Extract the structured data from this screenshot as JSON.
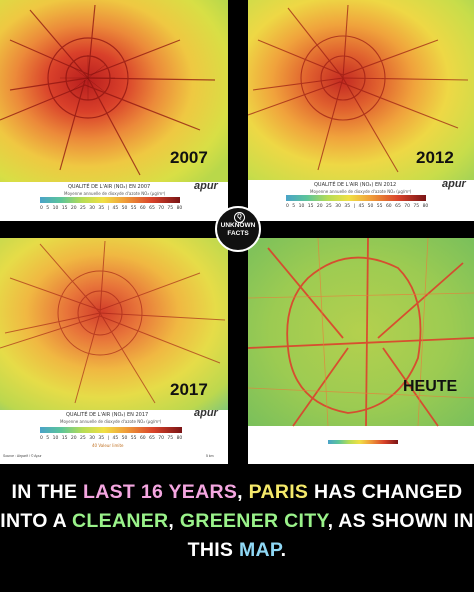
{
  "panels": [
    {
      "year": "2007",
      "legend_title": "QUALITÉ DE L'AIR (NO₂) EN 2007",
      "legend_sub": "Moyenne annuelle de dioxyde d'azote NO₂ (µg/m³)",
      "logo": "apur"
    },
    {
      "year": "2012",
      "legend_title": "QUALITÉ DE L'AIR (NO₂) EN 2012",
      "legend_sub": "Moyenne annuelle de dioxyde d'azote NO₂ (µg/m³)",
      "logo": "apur"
    },
    {
      "year": "2017",
      "legend_title": "QUALITÉ DE L'AIR (NO₂) EN 2017",
      "legend_sub": "Moyenne annuelle de dioxyde d'azote NO₂ (µg/m³)",
      "logo": "apur",
      "limit_note": "40 Valeur limite",
      "source": "Source : Airparif / © Apur",
      "scale": "5 km"
    },
    {
      "year": "HEUTE"
    }
  ],
  "legend_ticks": "0 5 10 15 20 25 30 35 | 45 50 55 60 65 70 75 80",
  "badge": {
    "line1": "UNKNOWN",
    "line2": "FACTS",
    "q": "Q"
  },
  "caption": {
    "p1": "IN THE ",
    "h1": "LAST 16 YEARS",
    "p2": ", ",
    "h2": "PARIS",
    "p3": " HAS CHANGED INTO A ",
    "h3": "CLEANER",
    "p4": ", ",
    "h4": "GREENER CITY",
    "p5": ", AS SHOWN IN THIS ",
    "h5": "MAP",
    "p6": "."
  },
  "colors": {
    "low": "#2f9e6a",
    "mid": "#e8e23a",
    "high": "#c8321e",
    "caption_pink": "#f4a6e0",
    "caption_yellow": "#f5e96a",
    "caption_green": "#9af28a",
    "caption_blue": "#8fd8f5"
  }
}
